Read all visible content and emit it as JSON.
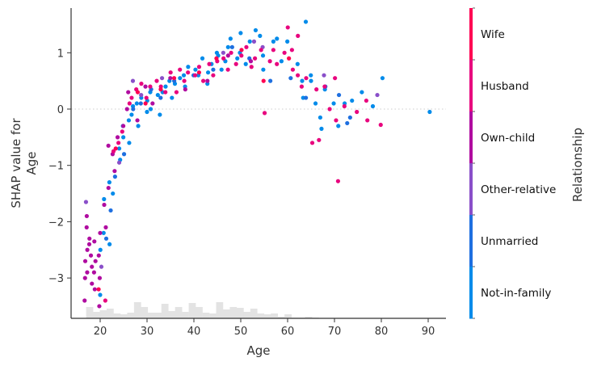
{
  "chart_data": {
    "type": "scatter",
    "title": "",
    "xlabel": "Age",
    "ylabel": "SHAP value for\nAge",
    "ylabel_lines": [
      "SHAP value for",
      "Age"
    ],
    "xlim": [
      14,
      94
    ],
    "ylim": [
      -3.7,
      1.8
    ],
    "xticks": [
      20,
      30,
      40,
      50,
      60,
      70,
      80,
      90
    ],
    "yticks": [
      -3,
      -2,
      -1,
      0,
      1
    ],
    "ytick_labels": [
      "−3",
      "−2",
      "−1",
      "0",
      "1"
    ],
    "grid": false,
    "zero_line": {
      "y": 0,
      "style": "dotted",
      "color": "#cccccc"
    },
    "colorbar": {
      "label": "Relationship",
      "categories": [
        "Wife",
        "Husband",
        "Own-child",
        "Other-relative",
        "Unmarried",
        "Not-in-family"
      ],
      "colors": [
        "#ff0052",
        "#e8057e",
        "#b00ca0",
        "#8a4fc9",
        "#1e6fe0",
        "#008bea"
      ]
    },
    "histogram": {
      "color": "#e3e3e3",
      "bins_start": 17,
      "bin_width": 1.46,
      "heights": [
        14,
        8,
        10,
        12,
        6,
        5,
        7,
        20,
        14,
        7,
        7,
        18,
        9,
        14,
        8,
        19,
        14,
        7,
        6,
        20,
        11,
        14,
        13,
        8,
        12,
        6,
        5,
        6,
        2,
        5,
        1,
        1,
        2,
        1,
        0.5,
        0.5,
        0.5,
        0.5,
        0.5,
        0.5,
        0.3,
        0.3,
        0.3,
        0.3,
        0.3,
        0.3,
        0.2,
        0.2,
        0.2,
        0.2,
        0.4
      ]
    },
    "series": [
      {
        "name": "Not-in-family",
        "color": "#008bea",
        "points": [
          [
            20,
            -3.3
          ],
          [
            20,
            -2.5
          ],
          [
            21,
            -2.2
          ],
          [
            21,
            -1.6
          ],
          [
            22,
            -1.3
          ],
          [
            22,
            -2.4
          ],
          [
            23,
            -1.5
          ],
          [
            24,
            -0.9
          ],
          [
            24,
            -0.7
          ],
          [
            25,
            -0.5
          ],
          [
            25,
            -0.3
          ],
          [
            26,
            -0.6
          ],
          [
            26,
            -0.2
          ],
          [
            27,
            -0.1
          ],
          [
            27,
            0.05
          ],
          [
            28,
            0.1
          ],
          [
            28,
            -0.3
          ],
          [
            29,
            0.2
          ],
          [
            30,
            0.15
          ],
          [
            30,
            -0.05
          ],
          [
            31,
            0.0
          ],
          [
            31,
            0.3
          ],
          [
            32,
            0.25
          ],
          [
            33,
            0.3
          ],
          [
            33,
            -0.1
          ],
          [
            34,
            0.4
          ],
          [
            35,
            0.2
          ],
          [
            35,
            0.5
          ],
          [
            36,
            0.45
          ],
          [
            37,
            0.55
          ],
          [
            38,
            0.4
          ],
          [
            38,
            0.6
          ],
          [
            39,
            0.75
          ],
          [
            40,
            0.7
          ],
          [
            41,
            0.6
          ],
          [
            42,
            0.9
          ],
          [
            43,
            0.65
          ],
          [
            43,
            0.45
          ],
          [
            44,
            0.8
          ],
          [
            45,
            0.95
          ],
          [
            45,
            1.0
          ],
          [
            46,
            0.7
          ],
          [
            47,
            0.85
          ],
          [
            47,
            1.1
          ],
          [
            48,
            1.25
          ],
          [
            49,
            0.9
          ],
          [
            50,
            1.35
          ],
          [
            50,
            1.0
          ],
          [
            51,
            0.8
          ],
          [
            52,
            1.2
          ],
          [
            53,
            1.4
          ],
          [
            54,
            1.3
          ],
          [
            55,
            0.95
          ],
          [
            55,
            0.7
          ],
          [
            57,
            1.2
          ],
          [
            58,
            1.25
          ],
          [
            59,
            0.85
          ],
          [
            60,
            1.2
          ],
          [
            62,
            0.8
          ],
          [
            63,
            0.5
          ],
          [
            63,
            0.2
          ],
          [
            64,
            1.55
          ],
          [
            65,
            0.6
          ],
          [
            65,
            0.5
          ],
          [
            66,
            0.1
          ],
          [
            67,
            -0.35
          ],
          [
            67,
            -0.15
          ],
          [
            68,
            0.35
          ],
          [
            70,
            0.1
          ],
          [
            71,
            -0.3
          ],
          [
            72,
            0.1
          ],
          [
            74,
            0.15
          ],
          [
            76,
            0.3
          ],
          [
            78,
            0.05
          ],
          [
            80,
            0.55
          ],
          [
            90,
            -0.05
          ]
        ]
      },
      {
        "name": "Unmarried",
        "color": "#1e6fe0",
        "points": [
          [
            21,
            -2.3
          ],
          [
            22,
            -1.8
          ],
          [
            23,
            -1.2
          ],
          [
            25,
            -0.8
          ],
          [
            27,
            0.0
          ],
          [
            29,
            0.1
          ],
          [
            31,
            0.35
          ],
          [
            33,
            0.2
          ],
          [
            36,
            0.5
          ],
          [
            40,
            0.6
          ],
          [
            44,
            0.7
          ],
          [
            48,
            1.1
          ],
          [
            52,
            0.9
          ],
          [
            56,
            0.5
          ],
          [
            61,
            0.55
          ],
          [
            64,
            0.2
          ],
          [
            68,
            0.4
          ],
          [
            71,
            0.25
          ],
          [
            73,
            -0.25
          ],
          [
            73,
            -0.15
          ]
        ]
      },
      {
        "name": "Other-relative",
        "color": "#8a4fc9",
        "points": [
          [
            17,
            -1.65
          ],
          [
            20,
            -2.8
          ],
          [
            24,
            -0.95
          ],
          [
            27,
            0.5
          ],
          [
            29,
            0.25
          ],
          [
            33,
            0.55
          ],
          [
            46,
            1.0
          ],
          [
            53,
            1.2
          ],
          [
            55,
            1.1
          ],
          [
            68,
            0.6
          ],
          [
            79,
            0.25
          ]
        ]
      },
      {
        "name": "Own-child",
        "color": "#b00ca0",
        "points": [
          [
            17,
            -1.9
          ],
          [
            17,
            -2.1
          ],
          [
            17,
            -2.5
          ],
          [
            17,
            -2.7
          ],
          [
            17,
            -2.9
          ],
          [
            17,
            -3.0
          ],
          [
            17,
            -3.4
          ],
          [
            18,
            -2.3
          ],
          [
            18,
            -2.4
          ],
          [
            18,
            -2.6
          ],
          [
            18,
            -2.8
          ],
          [
            18,
            -3.1
          ],
          [
            19,
            -2.35
          ],
          [
            19,
            -2.7
          ],
          [
            19,
            -2.9
          ],
          [
            19,
            -3.2
          ],
          [
            20,
            -2.2
          ],
          [
            20,
            -2.6
          ],
          [
            20,
            -3.0
          ],
          [
            20,
            -3.5
          ],
          [
            21,
            -1.7
          ],
          [
            21,
            -2.1
          ],
          [
            22,
            -0.65
          ],
          [
            22,
            -1.4
          ],
          [
            23,
            -0.8
          ],
          [
            23,
            -1.1
          ],
          [
            24,
            -0.5
          ],
          [
            25,
            -0.3
          ],
          [
            26,
            0.0
          ],
          [
            26,
            0.3
          ],
          [
            28,
            -0.2
          ],
          [
            30,
            0.4
          ],
          [
            31,
            0.1
          ],
          [
            35,
            0.55
          ],
          [
            38,
            0.35
          ],
          [
            43,
            0.5
          ],
          [
            47,
            0.95
          ],
          [
            52,
            0.85
          ]
        ]
      },
      {
        "name": "Husband",
        "color": "#e8057e",
        "points": [
          [
            21,
            -3.4
          ],
          [
            23,
            -0.75
          ],
          [
            24,
            -0.6
          ],
          [
            25,
            -0.4
          ],
          [
            26,
            0.1
          ],
          [
            27,
            0.2
          ],
          [
            28,
            0.35
          ],
          [
            29,
            0.45
          ],
          [
            30,
            0.2
          ],
          [
            31,
            0.4
          ],
          [
            32,
            0.5
          ],
          [
            33,
            0.4
          ],
          [
            34,
            0.3
          ],
          [
            35,
            0.65
          ],
          [
            36,
            0.3
          ],
          [
            37,
            0.7
          ],
          [
            38,
            0.5
          ],
          [
            39,
            0.65
          ],
          [
            40,
            0.6
          ],
          [
            41,
            0.75
          ],
          [
            42,
            0.5
          ],
          [
            43,
            0.8
          ],
          [
            44,
            0.6
          ],
          [
            45,
            0.85
          ],
          [
            46,
            0.9
          ],
          [
            47,
            0.7
          ],
          [
            48,
            1.0
          ],
          [
            49,
            0.8
          ],
          [
            50,
            0.95
          ],
          [
            51,
            1.1
          ],
          [
            52,
            0.75
          ],
          [
            53,
            0.9
          ],
          [
            54,
            1.05
          ],
          [
            55,
            -0.07
          ],
          [
            56,
            0.85
          ],
          [
            57,
            1.05
          ],
          [
            58,
            0.8
          ],
          [
            59,
            1.0
          ],
          [
            60,
            1.45
          ],
          [
            61,
            0.7
          ],
          [
            61,
            1.05
          ],
          [
            62,
            0.6
          ],
          [
            62,
            1.3
          ],
          [
            63,
            0.4
          ],
          [
            64,
            0.55
          ],
          [
            65,
            -0.6
          ],
          [
            66,
            0.35
          ],
          [
            67,
            -0.55
          ],
          [
            68,
            0.4
          ],
          [
            69,
            0.0
          ],
          [
            70,
            -0.2
          ],
          [
            70,
            0.55
          ],
          [
            71,
            -1.28
          ],
          [
            72,
            0.05
          ],
          [
            75,
            -0.05
          ],
          [
            77,
            0.15
          ],
          [
            77,
            -0.2
          ],
          [
            80,
            -0.28
          ]
        ]
      },
      {
        "name": "Wife",
        "color": "#ff0052",
        "points": [
          [
            20,
            -3.2
          ],
          [
            23,
            -0.7
          ],
          [
            28,
            0.3
          ],
          [
            30,
            0.1
          ],
          [
            33,
            0.35
          ],
          [
            36,
            0.55
          ],
          [
            41,
            0.65
          ],
          [
            45,
            0.9
          ],
          [
            50,
            1.05
          ],
          [
            55,
            0.5
          ],
          [
            60,
            0.9
          ]
        ]
      }
    ]
  },
  "axes": {
    "x_tick_labels": [
      "20",
      "30",
      "40",
      "50",
      "60",
      "70",
      "80",
      "90"
    ],
    "y_tick_labels": [
      "−3",
      "−2",
      "−1",
      "0",
      "1"
    ],
    "xlabel": "Age",
    "ylabel_line1": "SHAP value for",
    "ylabel_line2": "Age"
  },
  "colorbar": {
    "title": "Relationship",
    "labels": [
      "Wife",
      "Husband",
      "Own-child",
      "Other-relative",
      "Unmarried",
      "Not-in-family"
    ]
  }
}
